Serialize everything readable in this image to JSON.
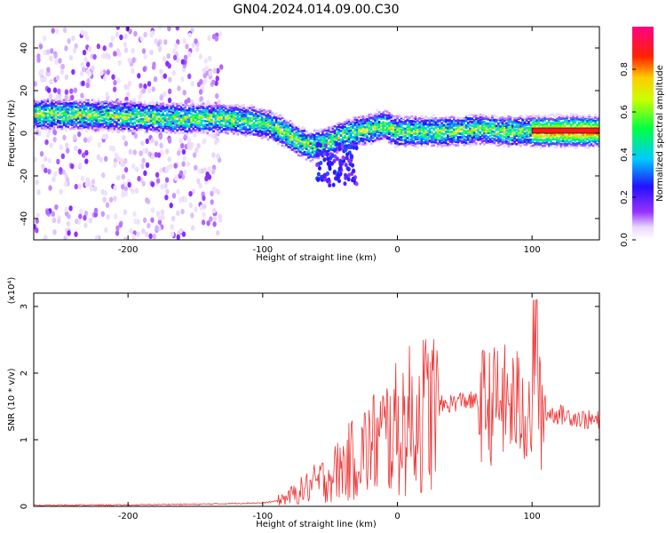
{
  "title": "GN04.2024.014.09.00.C30",
  "colors": {
    "snr_line": "#ee3333",
    "axis": "#000000",
    "background": "#ffffff"
  },
  "chart_data": [
    {
      "type": "heatmap",
      "xlabel": "Height of straight line (km)",
      "ylabel": "Frequency (Hz)",
      "xlim": [
        -270,
        150
      ],
      "ylim": [
        -50,
        50
      ],
      "xticks": [
        -200,
        -100,
        0,
        100
      ],
      "yticks": [
        -40,
        -20,
        0,
        20,
        40
      ],
      "colorbar": {
        "label": "Normalized spectral amplitude",
        "range": [
          0.0,
          1.0
        ],
        "ticks": [
          0.0,
          0.2,
          0.4,
          0.6,
          0.8
        ],
        "tick_labels": [
          "0.0",
          "0.2",
          "0.4",
          "0.6",
          "0.8"
        ],
        "colormap": "rainbow (white-purple-blue-cyan-green-yellow-red-magenta)"
      },
      "ridge": {
        "x": [
          -270,
          -240,
          -200,
          -160,
          -130,
          -110,
          -95,
          -85,
          -75,
          -65,
          -55,
          -45,
          -40,
          -30,
          -20,
          -10,
          0,
          20,
          40,
          60,
          80,
          100,
          150
        ],
        "freq": [
          9,
          9,
          8,
          7,
          7,
          6,
          4,
          1,
          -3,
          -6,
          -5,
          -2,
          -1,
          1,
          2,
          4,
          1,
          1,
          1,
          2,
          1,
          1,
          1
        ]
      }
    },
    {
      "type": "line",
      "xlabel": "Height of straight line (km)",
      "ylabel": "SNR (10 * v/v)",
      "ylabel_multiplier": "(x10⁴)",
      "xlim": [
        -270,
        150
      ],
      "ylim": [
        0,
        3.2
      ],
      "xticks": [
        -200,
        -100,
        0,
        100
      ],
      "yticks": [
        0,
        1,
        2,
        3
      ],
      "series": [
        {
          "x": [
            -270,
            -250,
            -230,
            -200,
            -170,
            -150,
            -130,
            -110,
            -100,
            -90,
            -80,
            -70,
            -60,
            -50,
            -40,
            -30,
            -20,
            -10,
            0,
            10,
            20,
            30,
            40,
            50,
            60,
            70,
            75,
            80,
            90,
            100,
            105,
            110,
            120,
            130,
            140,
            150
          ],
          "values": [
            0.01,
            0.02,
            0.02,
            0.02,
            0.03,
            0.03,
            0.04,
            0.05,
            0.05,
            0.08,
            0.15,
            0.25,
            0.35,
            0.45,
            0.6,
            0.75,
            0.9,
            1.05,
            1.15,
            1.3,
            1.4,
            1.5,
            1.55,
            1.6,
            1.55,
            1.5,
            1.6,
            1.55,
            1.5,
            1.45,
            1.4,
            1.4,
            1.38,
            1.35,
            1.3,
            1.28
          ]
        }
      ]
    }
  ]
}
